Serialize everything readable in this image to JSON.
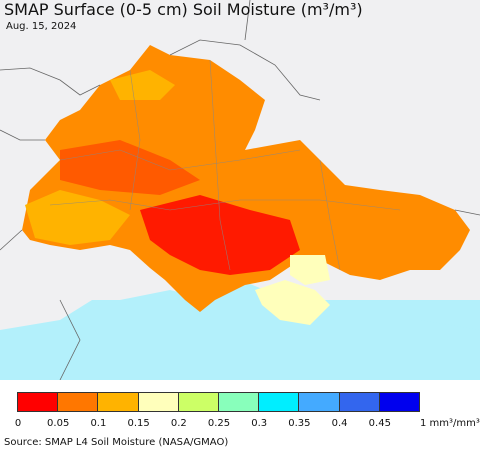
{
  "title": "SMAP Surface (0-5 cm) Soil Moisture (m³/m³)",
  "date": "Aug. 15, 2024",
  "legend": {
    "colors": [
      "#ff0000",
      "#ff7700",
      "#ffb300",
      "#ffffbb",
      "#ccff66",
      "#88ffbb",
      "#00eeff",
      "#44aaff",
      "#3366ee",
      "#0000ee"
    ],
    "ticks": [
      "0",
      "0.05",
      "0.1",
      "0.15",
      "0.2",
      "0.25",
      "0.3",
      "0.35",
      "0.4",
      "0.45"
    ],
    "unit": "1 mm³/mm³"
  },
  "source": "Source: SMAP L4 Soil Moisture (NASA/GMAO)"
}
